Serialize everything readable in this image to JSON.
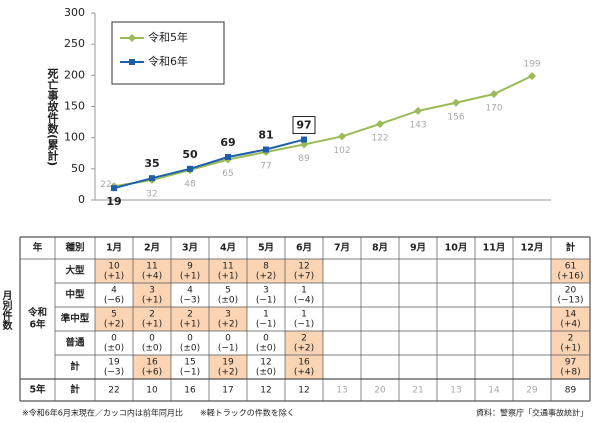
{
  "chart_data": {
    "type": "line",
    "y_label": "死亡事故件数(累計)",
    "categories": [
      "1月",
      "2月",
      "3月",
      "4月",
      "5月",
      "6月",
      "7月",
      "8月",
      "9月",
      "10月",
      "11月",
      "12月"
    ],
    "series": [
      {
        "name": "令和5年",
        "color": "#9bbb59",
        "marker": "diamond",
        "values": [
          22,
          32,
          48,
          65,
          77,
          89,
          102,
          122,
          143,
          156,
          170,
          199
        ]
      },
      {
        "name": "令和6年",
        "color": "#1f5fa8",
        "marker": "square",
        "values": [
          19,
          35,
          50,
          69,
          81,
          97,
          null,
          null,
          null,
          null,
          null,
          null
        ]
      }
    ],
    "ylim": [
      0,
      300
    ],
    "yticks": [
      0,
      50,
      100,
      150,
      200,
      250,
      300
    ],
    "grid": false,
    "legend": "upper left"
  },
  "table": {
    "side_label": "月別件数",
    "headers": [
      "年",
      "種別",
      "1月",
      "2月",
      "3月",
      "4月",
      "5月",
      "6月",
      "7月",
      "8月",
      "9月",
      "10月",
      "11月",
      "12月",
      "計"
    ],
    "group_label": [
      "令和",
      "6年"
    ],
    "highlight_color": "#fbd4b4",
    "rows": [
      {
        "type": "大型",
        "cells": [
          [
            "10",
            "(+1)"
          ],
          [
            "11",
            "(+4)"
          ],
          [
            "9",
            "(+1)"
          ],
          [
            "11",
            "(+1)"
          ],
          [
            "8",
            "(+2)"
          ],
          [
            "12",
            "(+7)"
          ],
          null,
          null,
          null,
          null,
          null,
          null,
          [
            "61",
            "(+16)"
          ]
        ],
        "highlight": [
          0,
          1,
          2,
          3,
          4,
          5,
          12
        ]
      },
      {
        "type": "中型",
        "cells": [
          [
            "4",
            "(−6)"
          ],
          [
            "3",
            "(+1)"
          ],
          [
            "4",
            "(−3)"
          ],
          [
            "5",
            "(±0)"
          ],
          [
            "3",
            "(−1)"
          ],
          [
            "1",
            "(−4)"
          ],
          null,
          null,
          null,
          null,
          null,
          null,
          [
            "20",
            "(−13)"
          ]
        ],
        "highlight": [
          1
        ]
      },
      {
        "type": "準中型",
        "cells": [
          [
            "5",
            "(+2)"
          ],
          [
            "2",
            "(+1)"
          ],
          [
            "2",
            "(+1)"
          ],
          [
            "3",
            "(+2)"
          ],
          [
            "1",
            "(−1)"
          ],
          [
            "1",
            "(−1)"
          ],
          null,
          null,
          null,
          null,
          null,
          null,
          [
            "14",
            "(+4)"
          ]
        ],
        "highlight": [
          0,
          1,
          2,
          3,
          12
        ]
      },
      {
        "type": "普通",
        "cells": [
          [
            "0",
            "(±0)"
          ],
          [
            "0",
            "(±0)"
          ],
          [
            "0",
            "(±0)"
          ],
          [
            "0",
            "(−1)"
          ],
          [
            "0",
            "(±0)"
          ],
          [
            "2",
            "(+2)"
          ],
          null,
          null,
          null,
          null,
          null,
          null,
          [
            "2",
            "(+1)"
          ]
        ],
        "highlight": [
          5,
          12
        ]
      },
      {
        "type": "計",
        "cells": [
          [
            "19",
            "(−3)"
          ],
          [
            "16",
            "(+6)"
          ],
          [
            "15",
            "(−1)"
          ],
          [
            "19",
            "(+2)"
          ],
          [
            "12",
            "(±0)"
          ],
          [
            "16",
            "(+4)"
          ],
          null,
          null,
          null,
          null,
          null,
          null,
          [
            "97",
            "(+8)"
          ]
        ],
        "highlight": [
          1,
          3,
          5,
          12
        ]
      }
    ],
    "prev_row": {
      "year": "5年",
      "type": "計",
      "cells": [
        22,
        10,
        16,
        17,
        12,
        12,
        13,
        20,
        21,
        13,
        14,
        29,
        89
      ],
      "muted": [
        6,
        7,
        8,
        9,
        10,
        11
      ]
    },
    "footnotes": [
      "※令和6年6月末現在／カッコ内は前年同月比",
      "※軽トラックの件数を除く",
      "資料：警察庁「交通事故統計」"
    ]
  }
}
